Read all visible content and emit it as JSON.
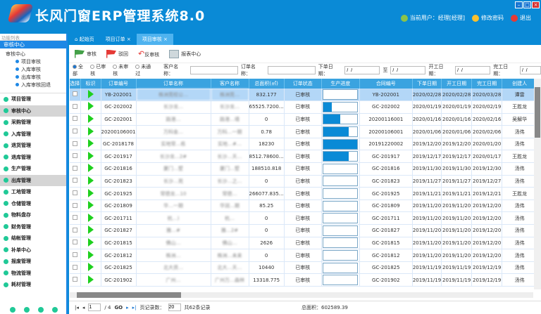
{
  "app": {
    "title": "长风门窗ERP管理系统8.0",
    "user": "当前用户：经理[经理]",
    "change_pwd": "修改密码",
    "logout": "退出"
  },
  "sidebar": {
    "filter_placeholder": "功能列表",
    "section": "审核中心",
    "tree": {
      "root": "审核中心",
      "items": [
        "项目审核",
        "入库审核",
        "出库审核",
        "入库审核回退"
      ]
    },
    "nav": [
      {
        "label": "项目管理"
      },
      {
        "label": "审核中心",
        "active": true
      },
      {
        "label": "采购管理"
      },
      {
        "label": "入库管理"
      },
      {
        "label": "退货管理"
      },
      {
        "label": "退库管理"
      },
      {
        "label": "生产管理"
      },
      {
        "label": "出库管理",
        "active": true
      },
      {
        "label": "工地管理"
      },
      {
        "label": "仓储管理"
      },
      {
        "label": "物料盘存"
      },
      {
        "label": "财务管理"
      },
      {
        "label": "结帐管理"
      },
      {
        "label": "补单中心"
      },
      {
        "label": "报废管理"
      },
      {
        "label": "物流管理"
      },
      {
        "label": "耗材管理"
      }
    ]
  },
  "tabs": [
    {
      "label": "起始页"
    },
    {
      "label": "项目订单"
    },
    {
      "label": "项目审核",
      "active": true
    }
  ],
  "toolbar": {
    "approve": "审核",
    "reject": "驳回",
    "unapprove": "反审核",
    "report": "报表中心"
  },
  "filter": {
    "radios": [
      "全部",
      "已审核",
      "未审核",
      "未通过"
    ],
    "selected": "全部",
    "customer_label": "客户名称：",
    "order_label": "订单名称：",
    "order_date_label": "下单日期：",
    "to_label": "至",
    "start_label": "开工日期：",
    "finish_label": "完工日期：",
    "date_value": " /  /"
  },
  "table": {
    "columns": [
      "选择",
      "标识",
      "订单编号",
      "订单名称",
      "客户名称",
      "总面积(㎡)",
      "订单状态",
      "生产进度",
      "合同编号",
      "下单日期",
      "开工日期",
      "完工日期",
      "创建人"
    ],
    "rows": [
      [
        "YB-202001",
        "株洲莞校公…",
        "株洲莞…",
        "832.177",
        "已审核",
        0,
        "YB-202001",
        "2020/02/28",
        "2020/02/28",
        "2020/03/28",
        "谭雷"
      ],
      [
        "GC-202002",
        "长沙龙…",
        "长沙龙…",
        "65525.7200…",
        "已审核",
        0.25,
        "GC-202002",
        "2020/01/19",
        "2020/01/19",
        "2020/02/19",
        "王胜龙"
      ],
      [
        "GC-202001",
        "路港…",
        "路港…墙",
        "0",
        "已审核",
        0.5,
        "20200116001",
        "2020/01/16",
        "2020/01/16",
        "2020/02/16",
        "吴解华"
      ],
      [
        "20200106001",
        "万科金…",
        "万科…一期",
        "0.78",
        "已审核",
        0.75,
        "20200106001",
        "2020/01/06",
        "2020/01/06",
        "2020/02/06",
        "汤伟"
      ],
      [
        "GC-2018178",
        "实地常…栋",
        "实地…#…",
        "18230",
        "已审核",
        1,
        "20191220002",
        "2019/12/20",
        "2019/12/20",
        "2020/01/20",
        "汤伟"
      ],
      [
        "GC-201917",
        "长沙龙…2#",
        "长沙…天…",
        "8512.78600…",
        "已审核",
        0.75,
        "GC-201917",
        "2019/12/17",
        "2019/12/17",
        "2020/01/17",
        "王胜龙"
      ],
      [
        "GC-201816",
        "厦门…墅",
        "厦门…墅",
        "188510.818",
        "已审核",
        0,
        "GC-201816",
        "2019/11/30",
        "2019/11/30",
        "2019/12/30",
        "汤伟"
      ],
      [
        "GC-201823",
        "长沙…苑",
        "长沙…之…",
        "0",
        "已审核",
        0,
        "GC-201823",
        "2019/11/27",
        "2019/11/27",
        "2019/12/27",
        "汤伟"
      ],
      [
        "GC-201925",
        "常德龙…10",
        "常德…",
        "266077.835…",
        "已审核",
        0,
        "GC-201925",
        "2019/11/21",
        "2019/11/21",
        "2019/12/21",
        "王胜龙"
      ],
      [
        "GC-201809",
        "华…一期",
        "华润…期",
        "85.25",
        "已审核",
        0,
        "GC-201809",
        "2019/11/20",
        "2019/11/20",
        "2019/12/20",
        "汤伟"
      ],
      [
        "GC-201711",
        "杭…)",
        "杭…",
        "0",
        "已审核",
        0,
        "GC-201711",
        "2019/11/20",
        "2019/11/20",
        "2019/12/20",
        "汤伟"
      ],
      [
        "GC-201827",
        "雅…#",
        "雅…2#",
        "0",
        "已审核",
        0,
        "GC-201827",
        "2019/11/20",
        "2019/11/20",
        "2019/12/20",
        "汤伟"
      ],
      [
        "GC-201815",
        "佛山…",
        "佛山…",
        "2626",
        "已审核",
        0,
        "GC-201815",
        "2019/11/20",
        "2019/11/20",
        "2019/12/20",
        "汤伟"
      ],
      [
        "GC-201812",
        "株洲…",
        "株洲…未来",
        "0",
        "已审核",
        0,
        "GC-201812",
        "2019/11/20",
        "2019/11/20",
        "2019/12/20",
        "汤伟"
      ],
      [
        "GC-201825",
        "北大资…",
        "北大…天…",
        "10440",
        "已审核",
        0,
        "GC-201825",
        "2019/11/19",
        "2019/11/19",
        "2019/12/19",
        "汤伟"
      ],
      [
        "GC-201902",
        "广州…",
        "广州万…森林",
        "13318.775",
        "已审核",
        0,
        "GC-201902",
        "2019/11/19",
        "2019/11/19",
        "2019/12/19",
        "汤伟"
      ]
    ]
  },
  "pager": {
    "page": "1",
    "total_pages": "/ 4",
    "go": "GO",
    "page_size_label": "页记录数：",
    "page_size": "20",
    "total_records": "共62条记录",
    "total_area": "总面积：602589.39"
  },
  "colors": {
    "header": "#0a8ad6",
    "table_header": "#3aa3e0",
    "progress": "#0a8ad6",
    "flag_icon": "#1ed01e"
  }
}
